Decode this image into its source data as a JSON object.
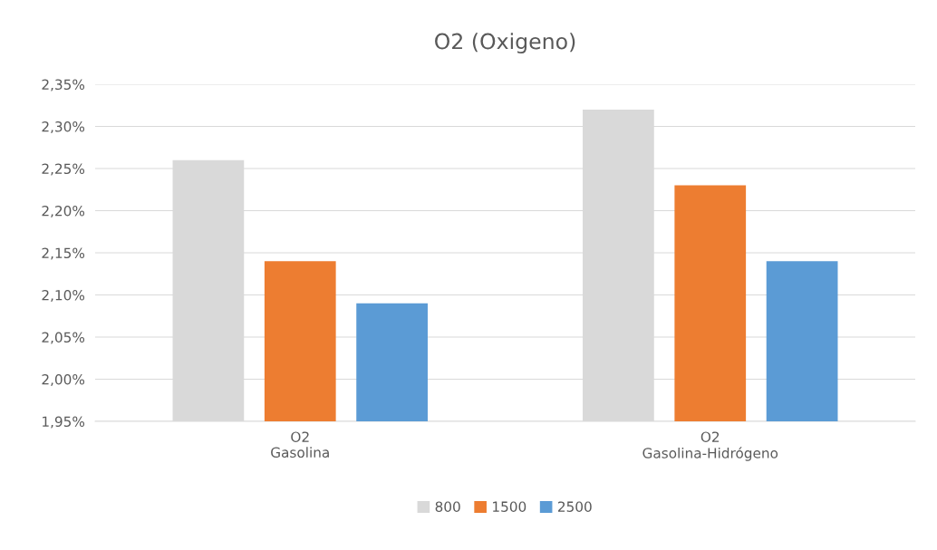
{
  "chart_data": {
    "type": "bar",
    "title": "O2 (Oxigeno)",
    "categories": [
      "O2\nGasolina",
      "O2\nGasolina-Hidrógeno"
    ],
    "series": [
      {
        "name": "800",
        "color": "#d9d9d9",
        "values": [
          2.26,
          2.32
        ]
      },
      {
        "name": "1500",
        "color": "#ed7d31",
        "values": [
          2.14,
          2.23
        ]
      },
      {
        "name": "2500",
        "color": "#5b9bd5",
        "values": [
          2.09,
          2.14
        ]
      }
    ],
    "ylim": [
      1.95,
      2.35
    ],
    "yticks": [
      {
        "value": 1.95,
        "label": "1,95%"
      },
      {
        "value": 2.0,
        "label": "2,00%"
      },
      {
        "value": 2.05,
        "label": "2,05%"
      },
      {
        "value": 2.1,
        "label": "2,10%"
      },
      {
        "value": 2.15,
        "label": "2,15%"
      },
      {
        "value": 2.2,
        "label": "2,20%"
      },
      {
        "value": 2.25,
        "label": "2,25%"
      },
      {
        "value": 2.3,
        "label": "2,30%"
      },
      {
        "value": 2.35,
        "label": "2,35%"
      }
    ],
    "grid": "y",
    "legend": "bottom"
  }
}
